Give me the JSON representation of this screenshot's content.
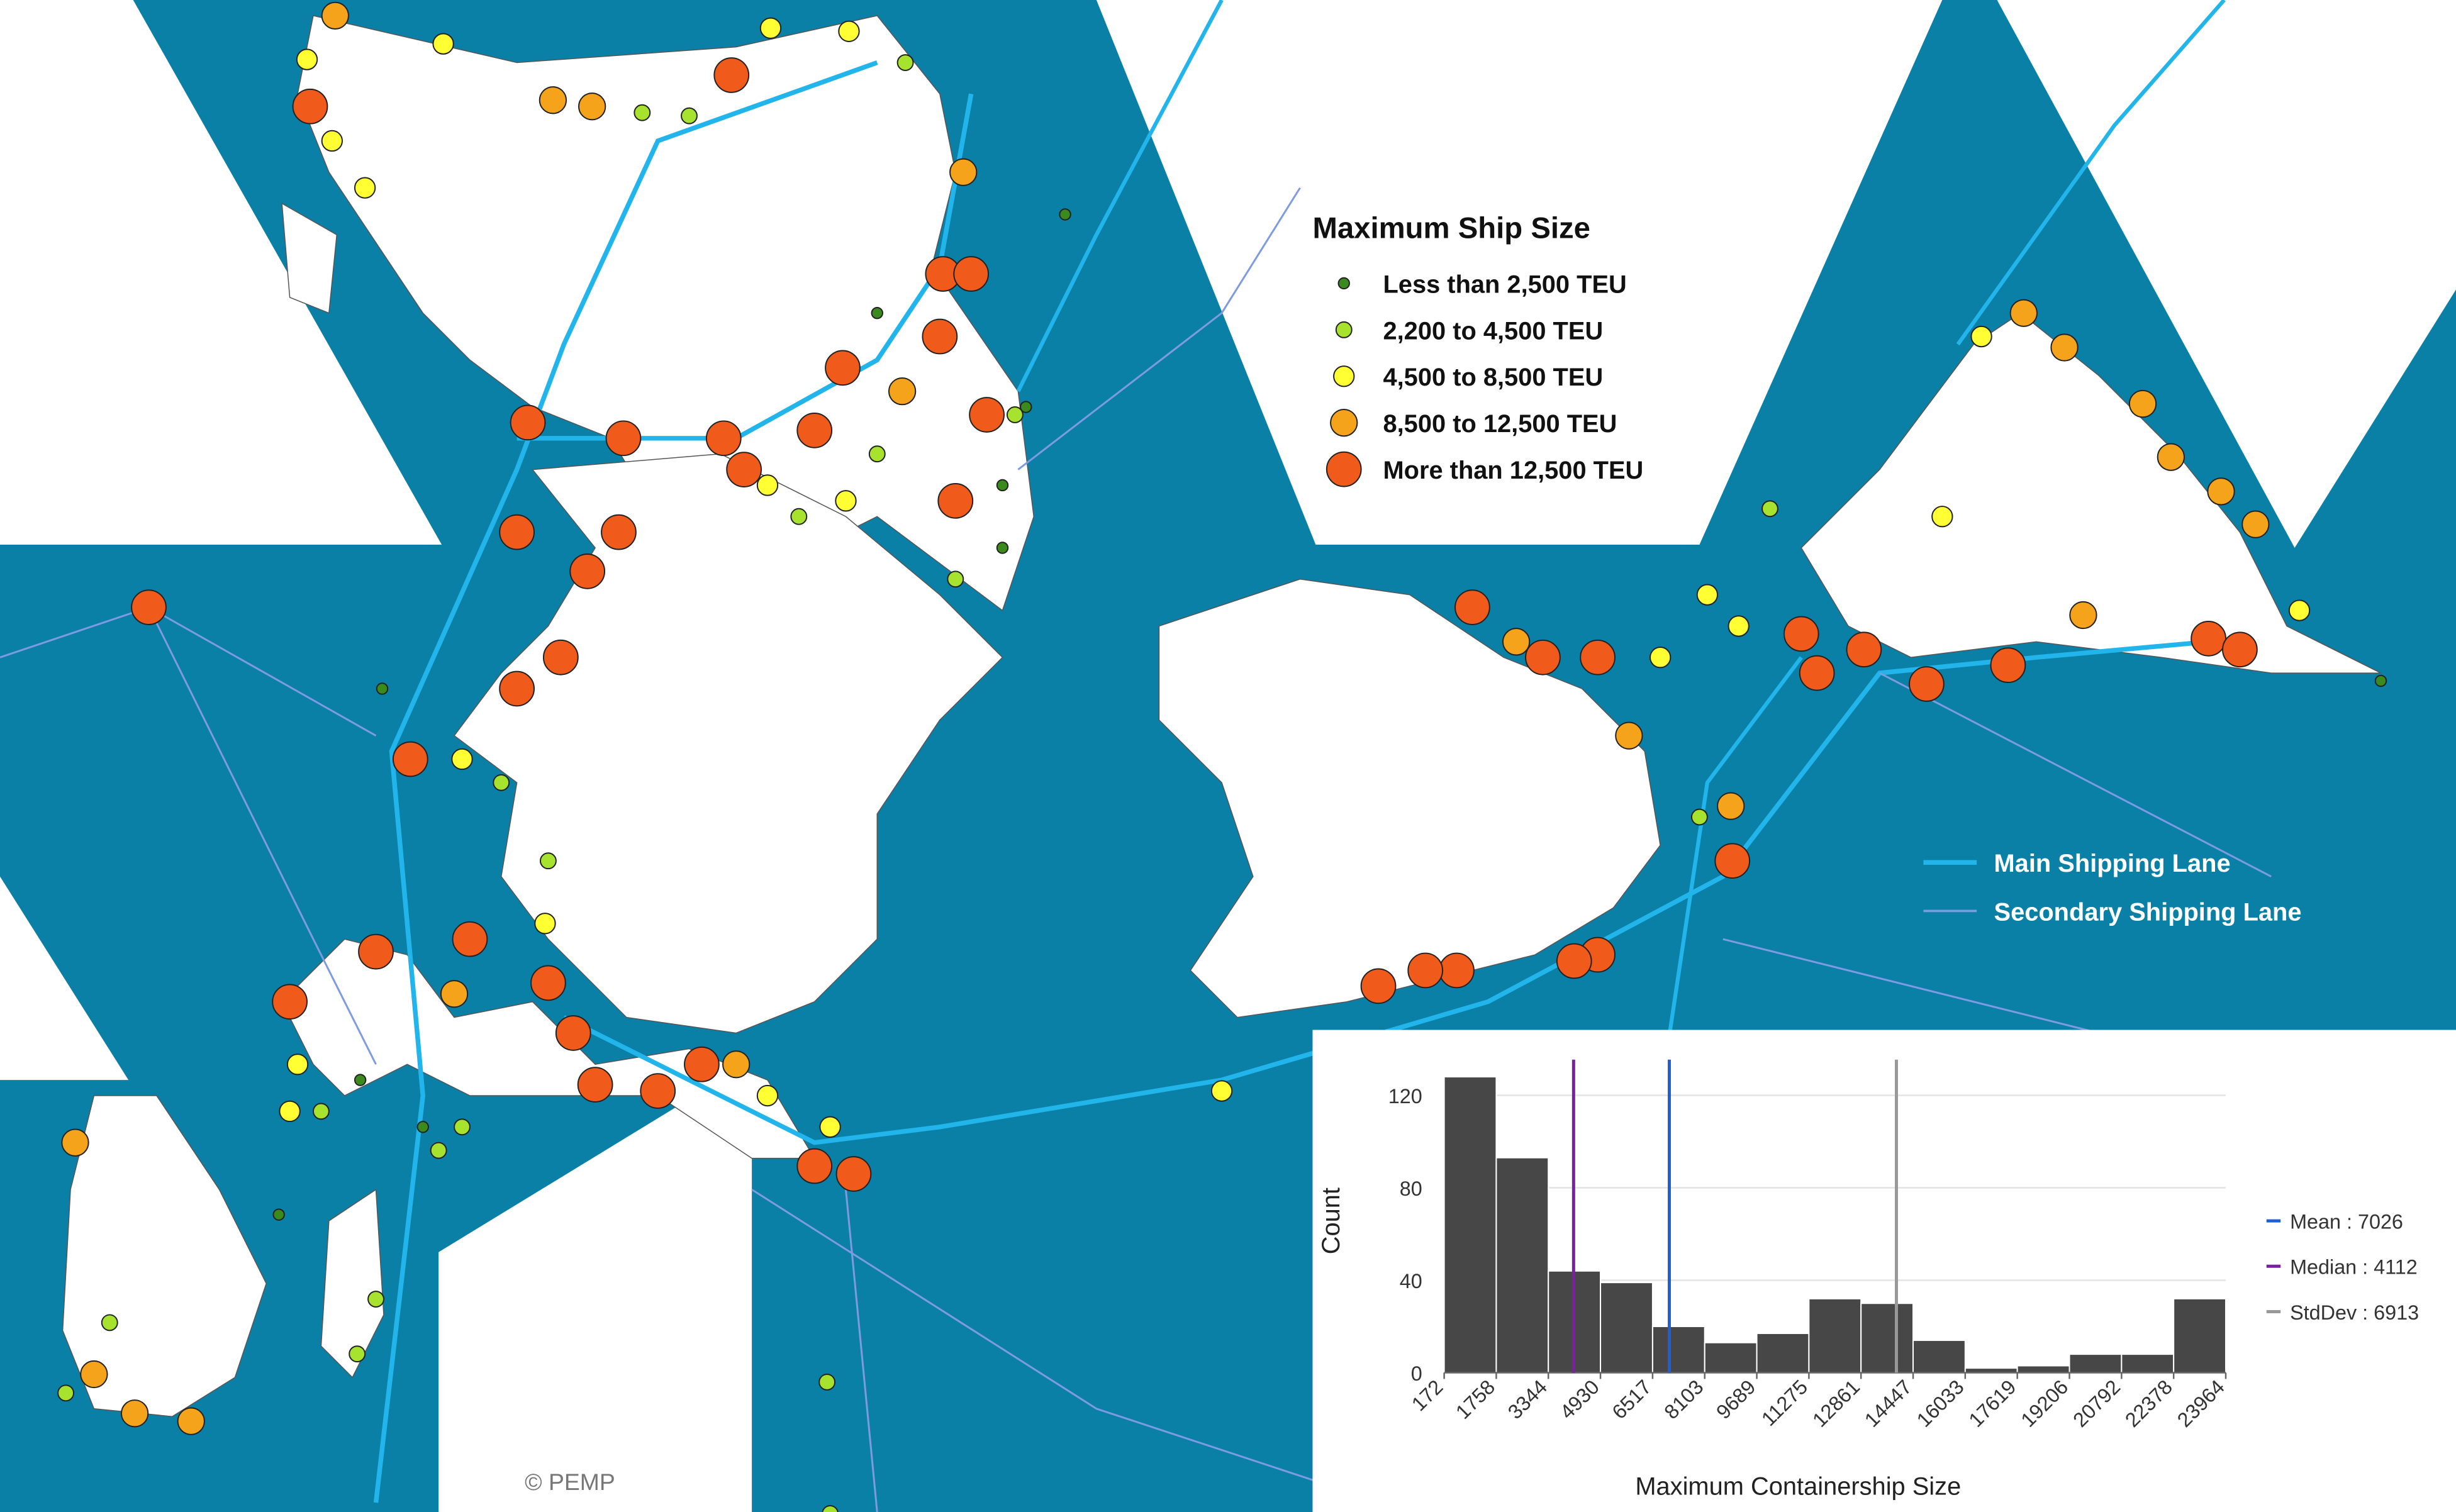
{
  "legend": {
    "title": "Maximum Ship Size",
    "items": [
      {
        "label": "Less than 2,500 TEU",
        "color": "#3a8a1e"
      },
      {
        "label": "2,200 to 4,500 TEU",
        "color": "#a6e22e"
      },
      {
        "label": "4,500 to 8,500 TEU",
        "color": "#ffff33"
      },
      {
        "label": "8,500 to 12,500 TEU",
        "color": "#f5a31a"
      },
      {
        "label": "More than 12,500 TEU",
        "color": "#f05a1a"
      }
    ]
  },
  "lanes": [
    {
      "label": "Main Shipping Lane",
      "color": "#22b5ec"
    },
    {
      "label": "Secondary Shipping Lane",
      "color": "#7d9be0"
    }
  ],
  "copyright": "© PEMP",
  "chart_data": {
    "type": "histogram",
    "x_label": "Maximum Containership Size",
    "y_label": "Count",
    "bins": [
      172,
      1758,
      3344,
      4930,
      6517,
      8103,
      9689,
      11275,
      12861,
      14447,
      16033,
      17619,
      19206,
      20792,
      22378,
      23964
    ],
    "counts": [
      128,
      93,
      44,
      39,
      20,
      13,
      17,
      32,
      30,
      14,
      2,
      3,
      8,
      8,
      32
    ],
    "color": "#474747",
    "xlim": [
      172,
      23964
    ],
    "ylim": [
      0,
      130
    ],
    "yticks": [
      0,
      40,
      80,
      120
    ],
    "grid": true,
    "stats": [
      {
        "name": "Mean : 7026",
        "value": 7026,
        "color": "#1f5fd6"
      },
      {
        "name": "Median : 4112",
        "value": 4112,
        "color": "#7b1fa2"
      },
      {
        "name": "StdDev : 6913",
        "value": 6913,
        "color": "#999999"
      }
    ]
  }
}
